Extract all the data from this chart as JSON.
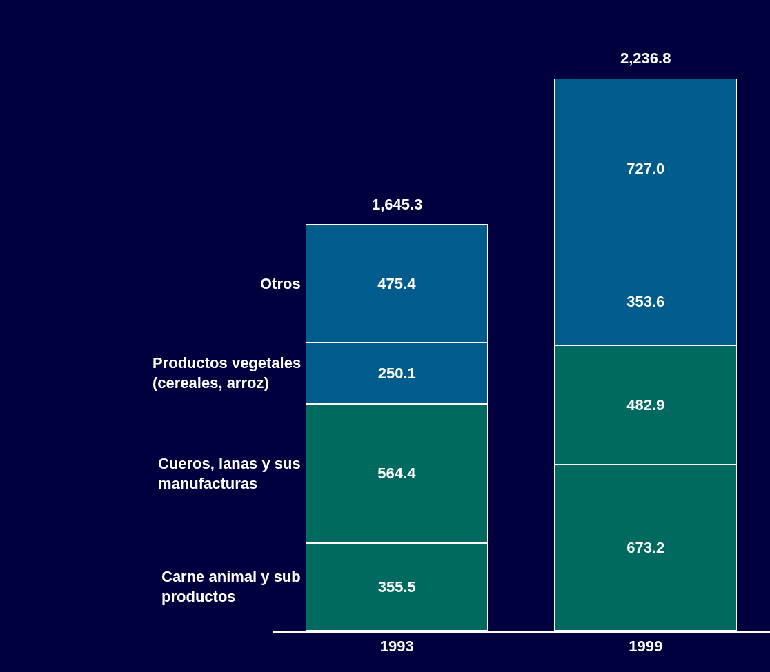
{
  "chart_data": {
    "type": "bar",
    "stacked": true,
    "categories": [
      "1993",
      "1999"
    ],
    "series": [
      {
        "name": "Carne animal y sub productos",
        "color": "#006a60",
        "values": [
          355.5,
          673.2
        ],
        "value_labels": [
          "355.5",
          "673.2"
        ]
      },
      {
        "name": "Cueros, lanas y sus manufacturas",
        "color": "#006a60",
        "values": [
          564.4,
          482.9
        ],
        "value_labels": [
          "564.4",
          "482.9"
        ]
      },
      {
        "name": "Productos vegetales (cereales, arroz)",
        "color": "#005c8c",
        "values": [
          250.1,
          353.6
        ],
        "value_labels": [
          "250.1",
          "353.6"
        ]
      },
      {
        "name": "Otros",
        "color": "#005c8c",
        "values": [
          475.4,
          727.0
        ],
        "value_labels": [
          "475.4",
          "727.0"
        ]
      }
    ],
    "totals": [
      "1,645.3",
      "2,236.8"
    ],
    "tick_labels": "x",
    "legend": false
  }
}
